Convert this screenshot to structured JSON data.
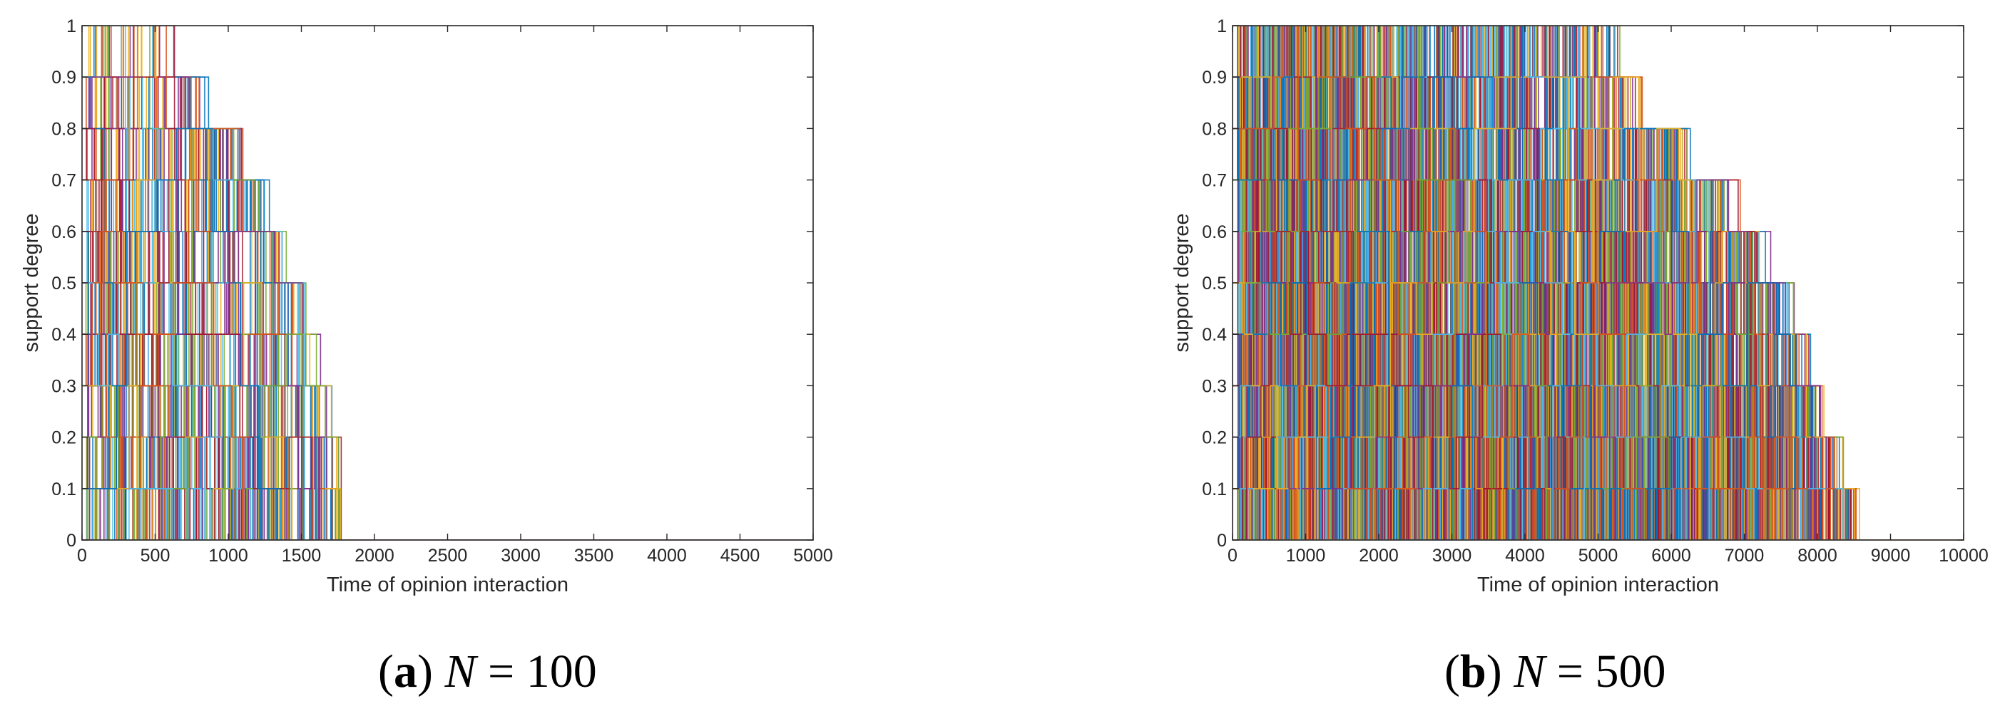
{
  "chart_data": [
    {
      "type": "line",
      "subplot": "(a)",
      "caption": {
        "letter": "a",
        "variable": "N",
        "relation": "=",
        "value": "100"
      },
      "title": "",
      "xlabel": "Time of opinion interaction",
      "ylabel": "support degree",
      "xlim": [
        0,
        5000
      ],
      "ylim": [
        0,
        1
      ],
      "xticks": [
        0,
        500,
        1000,
        1500,
        2000,
        2500,
        3000,
        3500,
        4000,
        4500,
        5000
      ],
      "yticks": [
        0,
        0.1,
        0.2,
        0.3,
        0.4,
        0.5,
        0.6,
        0.7,
        0.8,
        0.9,
        1
      ],
      "grid": false,
      "series_count": 100,
      "series_style": "step",
      "colors": [
        "#0072BD",
        "#D95319",
        "#EDB120",
        "#7E2F8E",
        "#77AC30",
        "#4DBEEE",
        "#A2142F"
      ],
      "envelope": {
        "x": [
          0,
          250,
          500,
          750,
          1000,
          1150,
          1300,
          1450,
          1550,
          1640,
          1700,
          1720,
          1780,
          5000
        ],
        "upper": [
          1.0,
          1.0,
          1.0,
          0.9,
          0.8,
          0.7,
          0.6,
          0.5,
          0.3,
          0.3,
          0.2,
          0.2,
          0.0,
          0.0
        ]
      }
    },
    {
      "type": "line",
      "subplot": "(b)",
      "caption": {
        "letter": "b",
        "variable": "N",
        "relation": "=",
        "value": "500"
      },
      "title": "",
      "xlabel": "Time of opinion interaction",
      "ylabel": "support degree",
      "xlim": [
        0,
        10000
      ],
      "ylim": [
        0,
        1
      ],
      "xticks": [
        0,
        1000,
        2000,
        3000,
        4000,
        5000,
        6000,
        7000,
        8000,
        9000,
        10000
      ],
      "yticks": [
        0,
        0.1,
        0.2,
        0.3,
        0.4,
        0.5,
        0.6,
        0.7,
        0.8,
        0.9,
        1
      ],
      "grid": false,
      "series_count": 500,
      "series_style": "step",
      "colors": [
        "#0072BD",
        "#D95319",
        "#EDB120",
        "#7E2F8E",
        "#77AC30",
        "#4DBEEE",
        "#A2142F"
      ],
      "envelope": {
        "x": [
          0,
          2000,
          4000,
          5000,
          5300,
          6000,
          6600,
          7000,
          7400,
          7800,
          8200,
          8400,
          8600,
          10000
        ],
        "upper": [
          1.0,
          1.0,
          1.0,
          1.0,
          0.9,
          0.8,
          0.7,
          0.6,
          0.5,
          0.3,
          0.2,
          0.1,
          0.0,
          0.0
        ]
      }
    }
  ]
}
